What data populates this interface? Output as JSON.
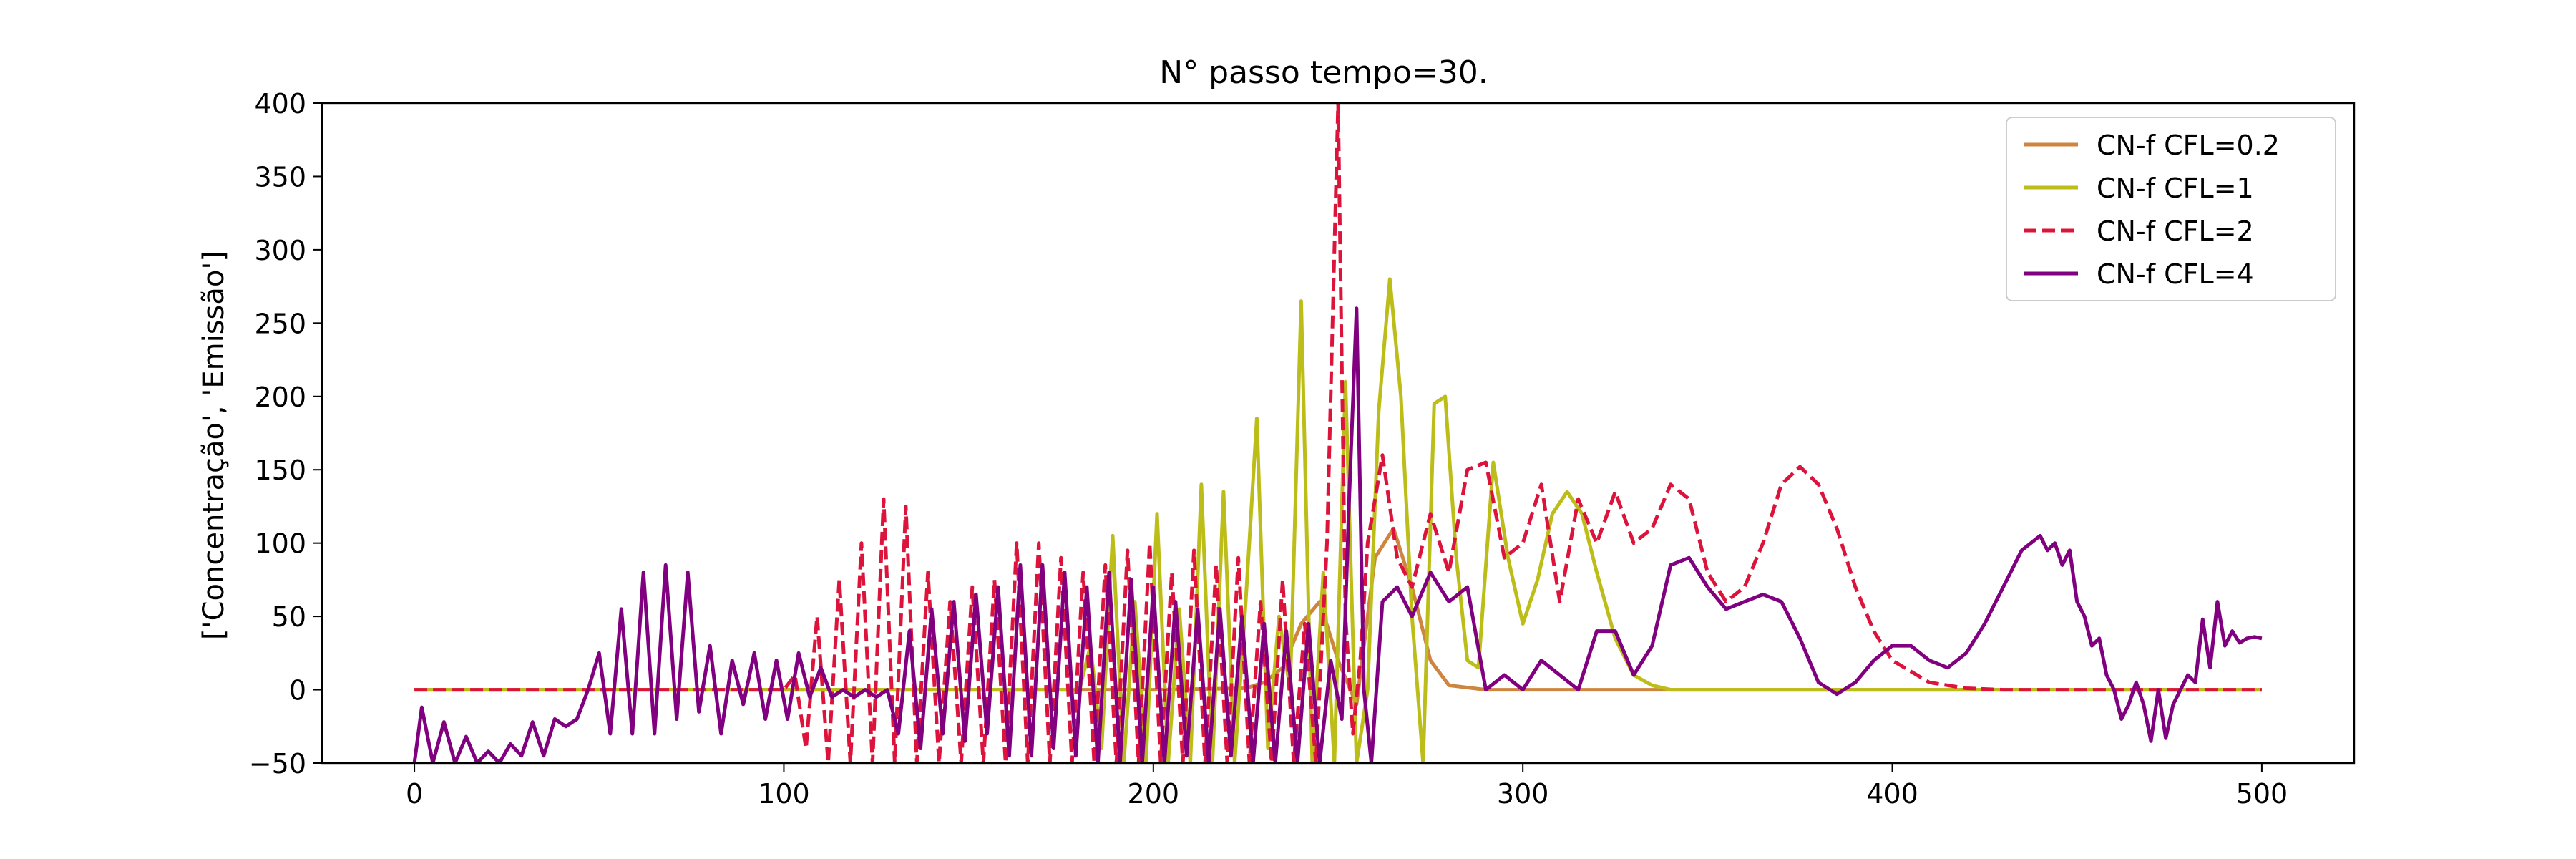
{
  "chart_data": {
    "type": "line",
    "title": "N° passo tempo=30.",
    "xlabel": "",
    "ylabel": "['Concentração', 'Emissão']",
    "xlim": [
      -25,
      525
    ],
    "ylim": [
      -50,
      400
    ],
    "x_ticks": [
      0,
      100,
      200,
      300,
      400,
      500
    ],
    "x_tick_labels": [
      "0",
      "100",
      "200",
      "300",
      "400",
      "500"
    ],
    "y_ticks": [
      -50,
      0,
      50,
      100,
      150,
      200,
      250,
      300,
      350,
      400
    ],
    "y_tick_labels": [
      "−50",
      "0",
      "50",
      "100",
      "150",
      "200",
      "250",
      "300",
      "350",
      "400"
    ],
    "grid": false,
    "legend_position": "upper right",
    "series": [
      {
        "name": "CN-f CFL=0.2",
        "color": "#cd853f",
        "dash": "solid",
        "x": [
          0,
          200,
          225,
          230,
          235,
          240,
          245,
          250,
          255,
          260,
          265,
          270,
          275,
          280,
          290,
          300,
          500
        ],
        "y": [
          0,
          0,
          1,
          5,
          15,
          45,
          60,
          20,
          -10,
          90,
          110,
          70,
          20,
          3,
          0,
          0,
          0
        ]
      },
      {
        "name": "CN-f CFL=1",
        "color": "#bdbd19",
        "dash": "solid",
        "x": [
          0,
          180,
          183,
          186,
          189,
          192,
          195,
          198,
          201,
          204,
          207,
          210,
          213,
          216,
          219,
          222,
          225,
          228,
          231,
          234,
          237,
          240,
          243,
          246,
          249,
          252,
          255,
          258,
          261,
          264,
          267,
          270,
          273,
          276,
          279,
          282,
          285,
          288,
          292,
          296,
          300,
          304,
          308,
          312,
          316,
          320,
          325,
          330,
          335,
          340,
          350,
          360,
          500
        ],
        "y": [
          0,
          0,
          30,
          -40,
          105,
          -50,
          60,
          -50,
          120,
          -50,
          55,
          -50,
          140,
          -50,
          135,
          -50,
          60,
          185,
          -40,
          50,
          0,
          265,
          -50,
          80,
          -50,
          210,
          -50,
          0,
          190,
          280,
          200,
          50,
          -50,
          195,
          200,
          90,
          20,
          15,
          155,
          90,
          45,
          75,
          120,
          135,
          120,
          80,
          35,
          10,
          3,
          0,
          0,
          0,
          0
        ]
      },
      {
        "name": "CN-f CFL=2",
        "color": "#dc143c",
        "dash": "dashed",
        "x": [
          0,
          100,
          103,
          106,
          109,
          112,
          115,
          118,
          121,
          124,
          127,
          130,
          133,
          136,
          139,
          142,
          145,
          148,
          151,
          154,
          157,
          160,
          163,
          166,
          169,
          172,
          175,
          178,
          181,
          184,
          187,
          190,
          193,
          196,
          199,
          202,
          205,
          208,
          211,
          214,
          217,
          220,
          223,
          226,
          229,
          232,
          235,
          238,
          241,
          244,
          247,
          250,
          252,
          254,
          256,
          258,
          262,
          266,
          270,
          275,
          280,
          285,
          290,
          295,
          300,
          305,
          310,
          315,
          320,
          325,
          330,
          335,
          340,
          345,
          350,
          355,
          360,
          365,
          370,
          375,
          380,
          385,
          390,
          395,
          400,
          410,
          420,
          430,
          440,
          450,
          500
        ],
        "y": [
          0,
          0,
          10,
          -40,
          50,
          -50,
          75,
          -50,
          100,
          -50,
          130,
          -50,
          125,
          -50,
          80,
          -50,
          60,
          -50,
          70,
          -50,
          75,
          -50,
          100,
          -50,
          100,
          -50,
          90,
          -50,
          80,
          -50,
          85,
          -50,
          95,
          -50,
          100,
          -50,
          80,
          -50,
          95,
          -50,
          85,
          -50,
          90,
          -50,
          60,
          -50,
          75,
          -50,
          45,
          -50,
          100,
          400,
          50,
          -30,
          20,
          100,
          160,
          90,
          70,
          120,
          80,
          150,
          155,
          90,
          100,
          140,
          60,
          130,
          100,
          135,
          100,
          110,
          140,
          130,
          80,
          60,
          70,
          100,
          140,
          152,
          140,
          110,
          70,
          40,
          20,
          5,
          1,
          0,
          0,
          0,
          0
        ]
      },
      {
        "name": "CN-f CFL=4",
        "color": "#800080",
        "dash": "solid",
        "x": [
          0,
          2,
          5,
          8,
          11,
          14,
          17,
          20,
          23,
          26,
          29,
          32,
          35,
          38,
          41,
          44,
          47,
          50,
          53,
          56,
          59,
          62,
          65,
          68,
          71,
          74,
          77,
          80,
          83,
          86,
          89,
          92,
          95,
          98,
          101,
          104,
          107,
          110,
          113,
          116,
          119,
          122,
          125,
          128,
          131,
          134,
          137,
          140,
          143,
          146,
          149,
          152,
          155,
          158,
          161,
          164,
          167,
          170,
          173,
          176,
          179,
          182,
          185,
          188,
          191,
          194,
          197,
          200,
          203,
          206,
          209,
          212,
          215,
          218,
          221,
          224,
          227,
          230,
          233,
          236,
          239,
          242,
          245,
          248,
          251,
          253,
          255,
          257,
          259,
          262,
          266,
          270,
          275,
          280,
          285,
          290,
          295,
          300,
          305,
          310,
          315,
          320,
          325,
          330,
          335,
          340,
          345,
          350,
          355,
          360,
          365,
          370,
          375,
          380,
          385,
          390,
          395,
          400,
          405,
          410,
          415,
          420,
          425,
          430,
          435,
          440,
          442,
          444,
          446,
          448,
          450,
          452,
          454,
          456,
          458,
          460,
          462,
          464,
          466,
          468,
          470,
          472,
          474,
          476,
          478,
          480,
          482,
          484,
          486,
          488,
          490,
          492,
          494,
          496,
          498,
          500
        ],
        "y": [
          -50,
          -12,
          -50,
          -22,
          -50,
          -32,
          -50,
          -42,
          -50,
          -37,
          -45,
          -22,
          -45,
          -20,
          -25,
          -20,
          0,
          25,
          -30,
          55,
          -30,
          80,
          -30,
          85,
          -20,
          80,
          -15,
          30,
          -30,
          20,
          -10,
          25,
          -20,
          20,
          -20,
          25,
          -5,
          15,
          -5,
          0,
          -5,
          0,
          -5,
          0,
          -30,
          40,
          -40,
          55,
          -30,
          60,
          -35,
          65,
          -30,
          70,
          -45,
          85,
          -45,
          85,
          -40,
          80,
          -45,
          70,
          -50,
          80,
          -50,
          75,
          -50,
          70,
          -50,
          60,
          -45,
          55,
          -50,
          55,
          -45,
          50,
          -50,
          45,
          -50,
          40,
          -50,
          45,
          -50,
          20,
          -20,
          130,
          260,
          0,
          -50,
          60,
          70,
          50,
          80,
          60,
          70,
          0,
          10,
          0,
          20,
          10,
          0,
          40,
          40,
          10,
          30,
          85,
          90,
          70,
          55,
          60,
          65,
          60,
          35,
          5,
          -3,
          5,
          20,
          30,
          30,
          20,
          15,
          25,
          45,
          70,
          95,
          105,
          95,
          100,
          85,
          95,
          60,
          50,
          30,
          35,
          10,
          0,
          -20,
          -10,
          5,
          -10,
          -35,
          0,
          -33,
          -10,
          0,
          10,
          5,
          48,
          15,
          60,
          30,
          40,
          32,
          35,
          36,
          35
        ]
      }
    ]
  }
}
